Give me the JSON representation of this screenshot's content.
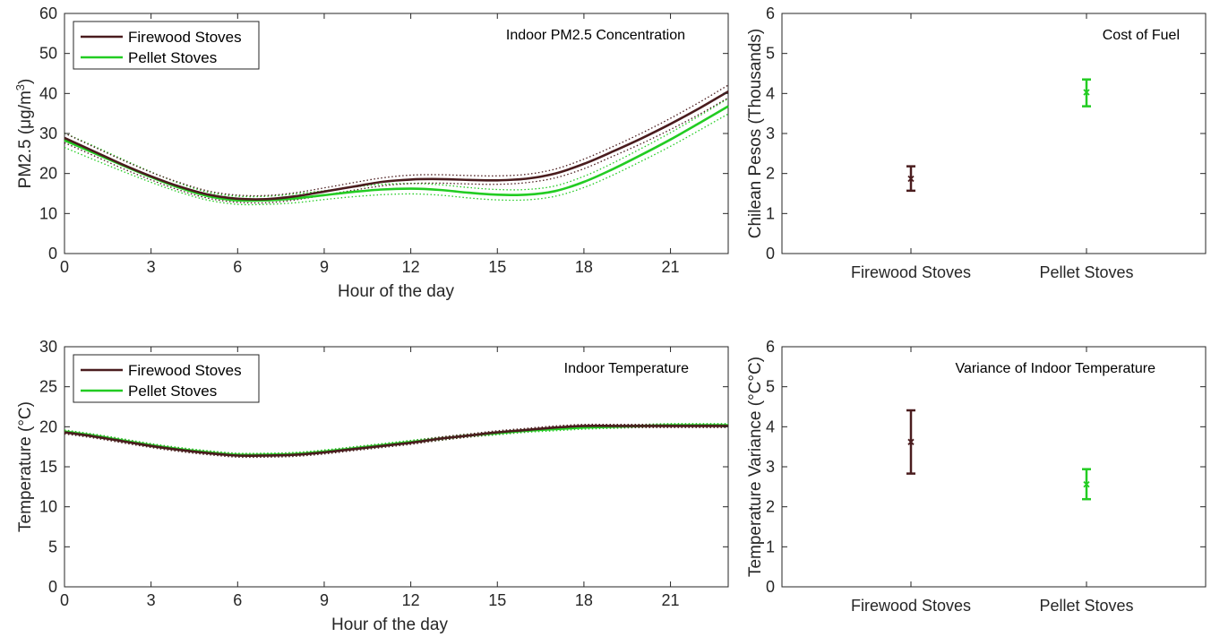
{
  "colors": {
    "firewood": "#4a1c1e",
    "pellet": "#22cc22",
    "axis": "#262626"
  },
  "chart_data": [
    {
      "id": "pm25",
      "type": "line",
      "title": "Indoor PM2.5 Concentration",
      "xlabel": "Hour of the day",
      "ylabel": "PM2.5 (μg/m3)",
      "ylabel_main": "PM2.5 (μg/m",
      "ylabel_sup": "3",
      "ylabel_end": ")",
      "xlim": [
        0,
        23
      ],
      "ylim": [
        0,
        60
      ],
      "xticks": [
        0,
        3,
        6,
        9,
        12,
        15,
        18,
        21
      ],
      "yticks": [
        0,
        10,
        20,
        30,
        40,
        50,
        60
      ],
      "legend": "top-left",
      "grid": false,
      "x": [
        0,
        1,
        2,
        3,
        4,
        5,
        6,
        7,
        8,
        9,
        10,
        11,
        12,
        13,
        14,
        15,
        16,
        17,
        18,
        19,
        20,
        21,
        22,
        23
      ],
      "series": [
        {
          "name": "Firewood Stoves",
          "color_key": "firewood",
          "values": [
            28.9,
            25.6,
            22.3,
            19.3,
            16.7,
            14.7,
            13.7,
            13.6,
            14.3,
            15.5,
            16.7,
            17.9,
            18.5,
            18.6,
            18.4,
            18.3,
            18.7,
            20.0,
            22.4,
            25.5,
            28.8,
            32.4,
            36.3,
            40.5
          ],
          "lower": [
            27.7,
            24.5,
            21.3,
            18.4,
            15.8,
            13.8,
            12.8,
            12.7,
            13.4,
            14.6,
            15.8,
            16.9,
            17.5,
            17.6,
            17.4,
            17.3,
            17.7,
            18.9,
            21.2,
            24.3,
            27.5,
            31.0,
            34.8,
            38.9
          ],
          "upper": [
            30.1,
            26.7,
            23.4,
            20.3,
            17.7,
            15.6,
            14.6,
            14.5,
            15.2,
            16.4,
            17.7,
            18.9,
            19.6,
            19.7,
            19.5,
            19.4,
            19.8,
            21.1,
            23.6,
            26.7,
            30.1,
            33.8,
            37.8,
            42.1
          ]
        },
        {
          "name": "Pellet Stoves",
          "color_key": "pellet",
          "values": [
            28.3,
            25.2,
            22.1,
            19.1,
            16.4,
            14.3,
            13.3,
            13.3,
            13.8,
            14.6,
            15.4,
            16.0,
            16.2,
            15.9,
            15.2,
            14.7,
            14.7,
            15.6,
            17.9,
            21.1,
            24.7,
            28.5,
            32.6,
            36.8
          ],
          "lower": [
            26.5,
            23.5,
            20.6,
            17.8,
            15.3,
            13.3,
            12.3,
            12.3,
            12.7,
            13.5,
            14.2,
            14.7,
            14.9,
            14.6,
            13.9,
            13.4,
            13.4,
            14.3,
            16.5,
            19.6,
            23.1,
            26.8,
            30.8,
            34.9
          ],
          "upper": [
            30.1,
            26.9,
            23.6,
            20.4,
            17.5,
            15.3,
            14.3,
            14.3,
            14.9,
            15.7,
            16.6,
            17.3,
            17.5,
            17.2,
            16.5,
            16.0,
            16.0,
            16.9,
            19.3,
            22.6,
            26.3,
            30.2,
            34.4,
            38.7
          ]
        }
      ]
    },
    {
      "id": "fuel",
      "type": "scatter",
      "title": "Cost of Fuel",
      "xlabel": "",
      "ylabel": "Chilean Pesos (Thousands)",
      "ylim": [
        0,
        6
      ],
      "yticks": [
        0,
        1,
        2,
        3,
        4,
        5,
        6
      ],
      "categories": [
        "Firewood Stoves",
        "Pellet Stoves"
      ],
      "series": [
        {
          "color_key": "firewood",
          "mean": 1.87,
          "low": 1.57,
          "high": 2.18
        },
        {
          "color_key": "pellet",
          "mean": 4.03,
          "low": 3.68,
          "high": 4.35
        }
      ]
    },
    {
      "id": "temp",
      "type": "line",
      "title": "Indoor Temperature",
      "xlabel": "Hour of the day",
      "ylabel": "Temperature (°C)",
      "xlim": [
        0,
        23
      ],
      "ylim": [
        0,
        30
      ],
      "xticks": [
        0,
        3,
        6,
        9,
        12,
        15,
        18,
        21
      ],
      "yticks": [
        0,
        5,
        10,
        15,
        20,
        25,
        30
      ],
      "legend": "top-left",
      "grid": false,
      "x": [
        0,
        1,
        2,
        3,
        4,
        5,
        6,
        7,
        8,
        9,
        10,
        11,
        12,
        13,
        14,
        15,
        16,
        17,
        18,
        19,
        20,
        21,
        22,
        23
      ],
      "series": [
        {
          "name": "Firewood Stoves",
          "color_key": "firewood",
          "values": [
            19.3,
            18.8,
            18.2,
            17.6,
            17.1,
            16.7,
            16.4,
            16.4,
            16.5,
            16.8,
            17.2,
            17.6,
            18.0,
            18.5,
            18.9,
            19.3,
            19.6,
            19.9,
            20.1,
            20.1,
            20.1,
            20.1,
            20.1,
            20.1
          ],
          "lower": [
            19.1,
            18.6,
            18.0,
            17.4,
            16.9,
            16.5,
            16.2,
            16.2,
            16.3,
            16.6,
            17.0,
            17.4,
            17.8,
            18.3,
            18.7,
            19.1,
            19.4,
            19.7,
            19.9,
            19.9,
            19.9,
            19.9,
            19.9,
            19.9
          ],
          "upper": [
            19.5,
            19.0,
            18.4,
            17.8,
            17.3,
            16.9,
            16.6,
            16.6,
            16.7,
            17.0,
            17.4,
            17.8,
            18.2,
            18.7,
            19.1,
            19.5,
            19.8,
            20.1,
            20.3,
            20.3,
            20.3,
            20.3,
            20.3,
            20.3
          ]
        },
        {
          "name": "Pellet Stoves",
          "color_key": "pellet",
          "values": [
            19.4,
            18.9,
            18.3,
            17.7,
            17.2,
            16.8,
            16.5,
            16.5,
            16.6,
            16.9,
            17.3,
            17.7,
            18.1,
            18.5,
            18.9,
            19.2,
            19.5,
            19.7,
            19.9,
            20.0,
            20.1,
            20.2,
            20.2,
            20.2
          ],
          "lower": [
            19.2,
            18.7,
            18.1,
            17.5,
            17.0,
            16.6,
            16.3,
            16.3,
            16.4,
            16.7,
            17.1,
            17.5,
            17.9,
            18.3,
            18.7,
            19.0,
            19.3,
            19.5,
            19.7,
            19.8,
            19.9,
            20.0,
            20.0,
            20.0
          ],
          "upper": [
            19.6,
            19.1,
            18.5,
            17.9,
            17.4,
            17.0,
            16.7,
            16.7,
            16.8,
            17.1,
            17.5,
            17.9,
            18.3,
            18.7,
            19.1,
            19.4,
            19.7,
            19.9,
            20.1,
            20.2,
            20.3,
            20.4,
            20.4,
            20.4
          ]
        }
      ]
    },
    {
      "id": "var",
      "type": "scatter",
      "title": "Variance of Indoor Temperature",
      "xlabel": "",
      "ylabel": "Temperature Variance (°C°C)",
      "ylim": [
        0,
        6
      ],
      "yticks": [
        0,
        1,
        2,
        3,
        4,
        5,
        6
      ],
      "categories": [
        "Firewood Stoves",
        "Pellet Stoves"
      ],
      "series": [
        {
          "color_key": "firewood",
          "mean": 3.62,
          "low": 2.83,
          "high": 4.41
        },
        {
          "color_key": "pellet",
          "mean": 2.56,
          "low": 2.19,
          "high": 2.94
        }
      ]
    }
  ]
}
